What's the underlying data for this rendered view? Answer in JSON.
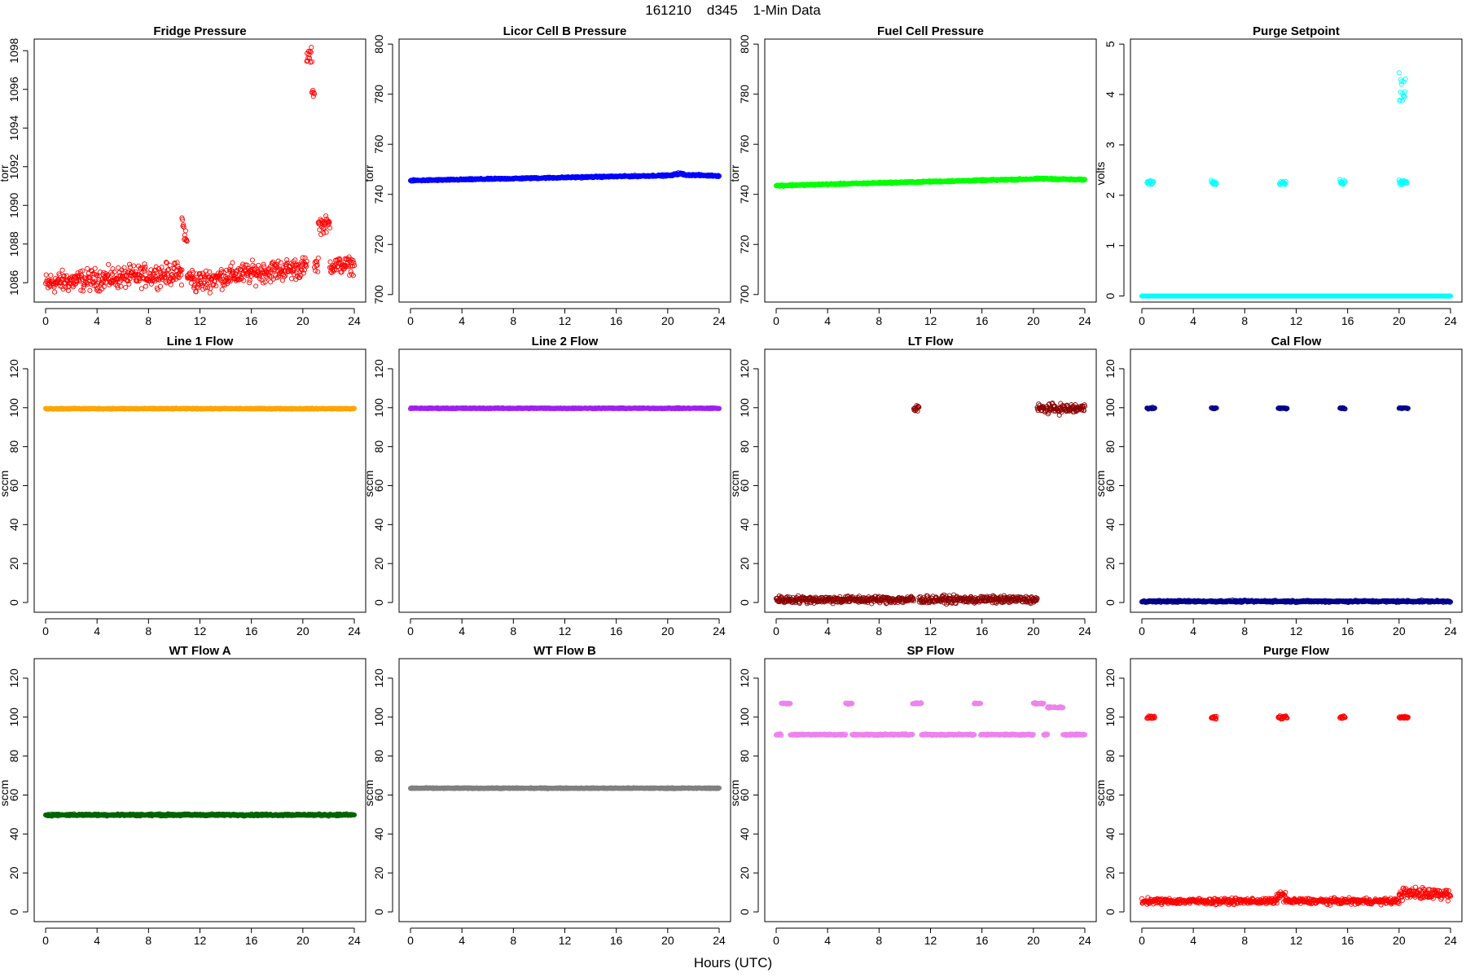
{
  "figure_title": "161210    d345    1-Min Data",
  "x_axis_label": "Hours (UTC)",
  "chart_data": [
    {
      "type": "scatter",
      "title": "Fridge Pressure",
      "ylabel": "torr",
      "color": "#ff0000",
      "xlim": [
        0,
        24
      ],
      "ylim": [
        1085,
        1098.6
      ],
      "xticks": [
        0,
        4,
        8,
        12,
        16,
        20,
        24
      ],
      "yticks": [
        1086,
        1088,
        1090,
        1092,
        1094,
        1096,
        1098
      ],
      "segments": [
        {
          "x": [
            0,
            0.3
          ],
          "y": [
            1085.9,
            1085.9
          ],
          "noise": 0.5
        },
        {
          "x": [
            0.3,
            10.6
          ],
          "y": [
            1086.0,
            1086.5
          ],
          "noise": 0.45
        },
        {
          "x": [
            10.6,
            11.0
          ],
          "y": [
            1089.2,
            1088.0
          ],
          "noise": 0.4
        },
        {
          "x": [
            11.0,
            11.5
          ],
          "y": [
            1086.3,
            1086.3
          ],
          "noise": 0.35
        },
        {
          "x": [
            11.5,
            14.5
          ],
          "y": [
            1086.0,
            1086.4
          ],
          "noise": 0.45
        },
        {
          "x": [
            14.5,
            20.3
          ],
          "y": [
            1086.4,
            1086.8
          ],
          "noise": 0.45
        },
        {
          "x": [
            20.3,
            20.7
          ],
          "y": [
            1097.7,
            1097.7
          ],
          "noise": 0.35
        },
        {
          "x": [
            20.7,
            20.9
          ],
          "y": [
            1095.8,
            1095.8
          ],
          "noise": 0.15
        },
        {
          "x": [
            20.9,
            21.2
          ],
          "y": [
            1087.0,
            1087.0
          ],
          "noise": 0.4
        },
        {
          "x": [
            21.2,
            22.1
          ],
          "y": [
            1089.0,
            1089.0
          ],
          "noise": 0.35
        },
        {
          "x": [
            22.1,
            24
          ],
          "y": [
            1086.9,
            1086.9
          ],
          "noise": 0.35
        }
      ]
    },
    {
      "type": "scatter",
      "title": "Licor Cell B Pressure",
      "ylabel": "torr",
      "color": "#0000ff",
      "xlim": [
        0,
        24
      ],
      "ylim": [
        697,
        802
      ],
      "xticks": [
        0,
        4,
        8,
        12,
        16,
        20,
        24
      ],
      "yticks": [
        700,
        720,
        740,
        760,
        780,
        800
      ],
      "segments": [
        {
          "x": [
            0,
            20.5
          ],
          "y": [
            745.5,
            747.6
          ],
          "noise": 0.25
        },
        {
          "x": [
            20.5,
            21.2
          ],
          "y": [
            748.2,
            748.2
          ],
          "noise": 0.35
        },
        {
          "x": [
            21.2,
            24
          ],
          "y": [
            747.8,
            747.4
          ],
          "noise": 0.25
        }
      ]
    },
    {
      "type": "scatter",
      "title": "Fuel Cell Pressure",
      "ylabel": "torr",
      "color": "#00ff00",
      "xlim": [
        0,
        24
      ],
      "ylim": [
        697,
        802
      ],
      "xticks": [
        0,
        4,
        8,
        12,
        16,
        20,
        24
      ],
      "yticks": [
        700,
        720,
        740,
        760,
        780,
        800
      ],
      "segments": [
        {
          "x": [
            0,
            20.5
          ],
          "y": [
            743.5,
            746.2
          ],
          "noise": 0.25
        },
        {
          "x": [
            20.5,
            24
          ],
          "y": [
            746.3,
            745.8
          ],
          "noise": 0.25
        }
      ]
    },
    {
      "type": "scatter",
      "title": "Purge Setpoint",
      "ylabel": "volts",
      "color": "#00ffff",
      "xlim": [
        0,
        24
      ],
      "ylim": [
        -0.12,
        5.1
      ],
      "xticks": [
        0,
        4,
        8,
        12,
        16,
        20,
        24
      ],
      "yticks": [
        0,
        1,
        2,
        3,
        4,
        5
      ],
      "segments": [
        {
          "x": [
            0,
            24
          ],
          "y": [
            0,
            0
          ],
          "noise": 0
        },
        {
          "x": [
            0.4,
            0.9
          ],
          "y": [
            2.26,
            2.26
          ],
          "noise": 0.04
        },
        {
          "x": [
            5.4,
            5.8
          ],
          "y": [
            2.26,
            2.26
          ],
          "noise": 0.04
        },
        {
          "x": [
            10.7,
            11.2
          ],
          "y": [
            2.26,
            2.26
          ],
          "noise": 0.04
        },
        {
          "x": [
            15.4,
            15.8
          ],
          "y": [
            2.26,
            2.26
          ],
          "noise": 0.04
        },
        {
          "x": [
            20.0,
            20.6
          ],
          "y": [
            2.26,
            2.26
          ],
          "noise": 0.04
        },
        {
          "x": [
            20.0,
            20.5
          ],
          "y": [
            4.05,
            4.05
          ],
          "noise": 0.25
        }
      ]
    },
    {
      "type": "scatter",
      "title": "Line 1 Flow",
      "ylabel": "sccm",
      "color": "#ffa500",
      "xlim": [
        0,
        24
      ],
      "ylim": [
        -5,
        130
      ],
      "xticks": [
        0,
        4,
        8,
        12,
        16,
        20,
        24
      ],
      "yticks": [
        0,
        20,
        40,
        60,
        80,
        100,
        120
      ],
      "segments": [
        {
          "x": [
            0,
            24
          ],
          "y": [
            99.5,
            99.5
          ],
          "noise": 0.2
        }
      ]
    },
    {
      "type": "scatter",
      "title": "Line 2 Flow",
      "ylabel": "sccm",
      "color": "#a020f0",
      "xlim": [
        0,
        24
      ],
      "ylim": [
        -5,
        130
      ],
      "xticks": [
        0,
        4,
        8,
        12,
        16,
        20,
        24
      ],
      "yticks": [
        0,
        20,
        40,
        60,
        80,
        100,
        120
      ],
      "segments": [
        {
          "x": [
            0,
            24
          ],
          "y": [
            99.7,
            99.7
          ],
          "noise": 0.2
        }
      ]
    },
    {
      "type": "scatter",
      "title": "LT Flow",
      "ylabel": "sccm",
      "color": "#8b0000",
      "xlim": [
        0,
        24
      ],
      "ylim": [
        -5,
        130
      ],
      "xticks": [
        0,
        4,
        8,
        12,
        16,
        20,
        24
      ],
      "yticks": [
        0,
        20,
        40,
        60,
        80,
        100,
        120
      ],
      "segments": [
        {
          "x": [
            0,
            10.7
          ],
          "y": [
            1.5,
            1.5
          ],
          "noise": 1.5
        },
        {
          "x": [
            10.7,
            11.1
          ],
          "y": [
            99.5,
            99.5
          ],
          "noise": 2.5
        },
        {
          "x": [
            11.1,
            20.3
          ],
          "y": [
            1.5,
            1.5
          ],
          "noise": 1.5
        },
        {
          "x": [
            20.3,
            24
          ],
          "y": [
            99.5,
            99.5
          ],
          "noise": 2
        }
      ]
    },
    {
      "type": "scatter",
      "title": "Cal Flow",
      "ylabel": "sccm",
      "color": "#00008b",
      "xlim": [
        0,
        24
      ],
      "ylim": [
        -5,
        130
      ],
      "xticks": [
        0,
        4,
        8,
        12,
        16,
        20,
        24
      ],
      "yticks": [
        0,
        20,
        40,
        60,
        80,
        100,
        120
      ],
      "segments": [
        {
          "x": [
            0,
            24
          ],
          "y": [
            0.6,
            0.6
          ],
          "noise": 0.4
        },
        {
          "x": [
            0.4,
            1.0
          ],
          "y": [
            99.7,
            99.7
          ],
          "noise": 0.3
        },
        {
          "x": [
            5.4,
            5.8
          ],
          "y": [
            99.7,
            99.7
          ],
          "noise": 0.3
        },
        {
          "x": [
            10.6,
            11.3
          ],
          "y": [
            99.7,
            99.7
          ],
          "noise": 0.3
        },
        {
          "x": [
            15.4,
            15.8
          ],
          "y": [
            99.7,
            99.7
          ],
          "noise": 0.3
        },
        {
          "x": [
            20.0,
            20.7
          ],
          "y": [
            99.7,
            99.7
          ],
          "noise": 0.3
        }
      ]
    },
    {
      "type": "scatter",
      "title": "WT Flow A",
      "ylabel": "sccm",
      "color": "#006400",
      "xlim": [
        0,
        24
      ],
      "ylim": [
        -5,
        130
      ],
      "xticks": [
        0,
        4,
        8,
        12,
        16,
        20,
        24
      ],
      "yticks": [
        0,
        20,
        40,
        60,
        80,
        100,
        120
      ],
      "segments": [
        {
          "x": [
            0,
            24
          ],
          "y": [
            49.8,
            49.8
          ],
          "noise": 0.4
        }
      ]
    },
    {
      "type": "scatter",
      "title": "WT Flow B",
      "ylabel": "sccm",
      "color": "#808080",
      "xlim": [
        0,
        24
      ],
      "ylim": [
        -5,
        130
      ],
      "xticks": [
        0,
        4,
        8,
        12,
        16,
        20,
        24
      ],
      "yticks": [
        0,
        20,
        40,
        60,
        80,
        100,
        120
      ],
      "segments": [
        {
          "x": [
            0,
            24
          ],
          "y": [
            63.5,
            63.5
          ],
          "noise": 0.2
        }
      ]
    },
    {
      "type": "scatter",
      "title": "SP Flow",
      "ylabel": "sccm",
      "color": "#ee82ee",
      "xlim": [
        0,
        24
      ],
      "ylim": [
        -5,
        130
      ],
      "xticks": [
        0,
        4,
        8,
        12,
        16,
        20,
        24
      ],
      "yticks": [
        0,
        20,
        40,
        60,
        80,
        100,
        120
      ],
      "segments": [
        {
          "x": [
            0,
            0.4
          ],
          "y": [
            91,
            91
          ],
          "noise": 0.3
        },
        {
          "x": [
            0.4,
            1.1
          ],
          "y": [
            107,
            107
          ],
          "noise": 0.3
        },
        {
          "x": [
            1.1,
            5.4
          ],
          "y": [
            91,
            91
          ],
          "noise": 0.3
        },
        {
          "x": [
            5.4,
            5.9
          ],
          "y": [
            107,
            107
          ],
          "noise": 0.3
        },
        {
          "x": [
            5.9,
            10.6
          ],
          "y": [
            91,
            91
          ],
          "noise": 0.3
        },
        {
          "x": [
            10.6,
            11.3
          ],
          "y": [
            107,
            107
          ],
          "noise": 0.3
        },
        {
          "x": [
            11.3,
            15.4
          ],
          "y": [
            91,
            91
          ],
          "noise": 0.3
        },
        {
          "x": [
            15.4,
            15.9
          ],
          "y": [
            107,
            107
          ],
          "noise": 0.3
        },
        {
          "x": [
            15.9,
            20.0
          ],
          "y": [
            91,
            91
          ],
          "noise": 0.3
        },
        {
          "x": [
            20.0,
            20.8
          ],
          "y": [
            107,
            107
          ],
          "noise": 0.3
        },
        {
          "x": [
            20.8,
            21.1
          ],
          "y": [
            91,
            91
          ],
          "noise": 0.3
        },
        {
          "x": [
            21.1,
            22.3
          ],
          "y": [
            105,
            105
          ],
          "noise": 0.3
        },
        {
          "x": [
            22.3,
            24
          ],
          "y": [
            91,
            91
          ],
          "noise": 0.3
        }
      ]
    },
    {
      "type": "scatter",
      "title": "Purge Flow",
      "ylabel": "sccm",
      "color": "#ff0000",
      "xlim": [
        0,
        24
      ],
      "ylim": [
        -5,
        130
      ],
      "xticks": [
        0,
        4,
        8,
        12,
        16,
        20,
        24
      ],
      "yticks": [
        0,
        20,
        40,
        60,
        80,
        100,
        120
      ],
      "segments": [
        {
          "x": [
            0,
            10.5
          ],
          "y": [
            5.5,
            5.5
          ],
          "noise": 1.2
        },
        {
          "x": [
            10.5,
            11.2
          ],
          "y": [
            8.5,
            8.5
          ],
          "noise": 2
        },
        {
          "x": [
            11.2,
            20.0
          ],
          "y": [
            5.5,
            5.5
          ],
          "noise": 1.2
        },
        {
          "x": [
            20.0,
            24
          ],
          "y": [
            9.5,
            9.5
          ],
          "noise": 2.5
        },
        {
          "x": [
            0.4,
            1.0
          ],
          "y": [
            99.8,
            99.8
          ],
          "noise": 0.6
        },
        {
          "x": [
            5.4,
            5.8
          ],
          "y": [
            99.8,
            99.8
          ],
          "noise": 0.6
        },
        {
          "x": [
            10.6,
            11.3
          ],
          "y": [
            99.8,
            99.8
          ],
          "noise": 0.6
        },
        {
          "x": [
            15.4,
            15.8
          ],
          "y": [
            99.8,
            99.8
          ],
          "noise": 0.6
        },
        {
          "x": [
            20.0,
            20.7
          ],
          "y": [
            99.8,
            99.8
          ],
          "noise": 0.6
        }
      ]
    }
  ]
}
